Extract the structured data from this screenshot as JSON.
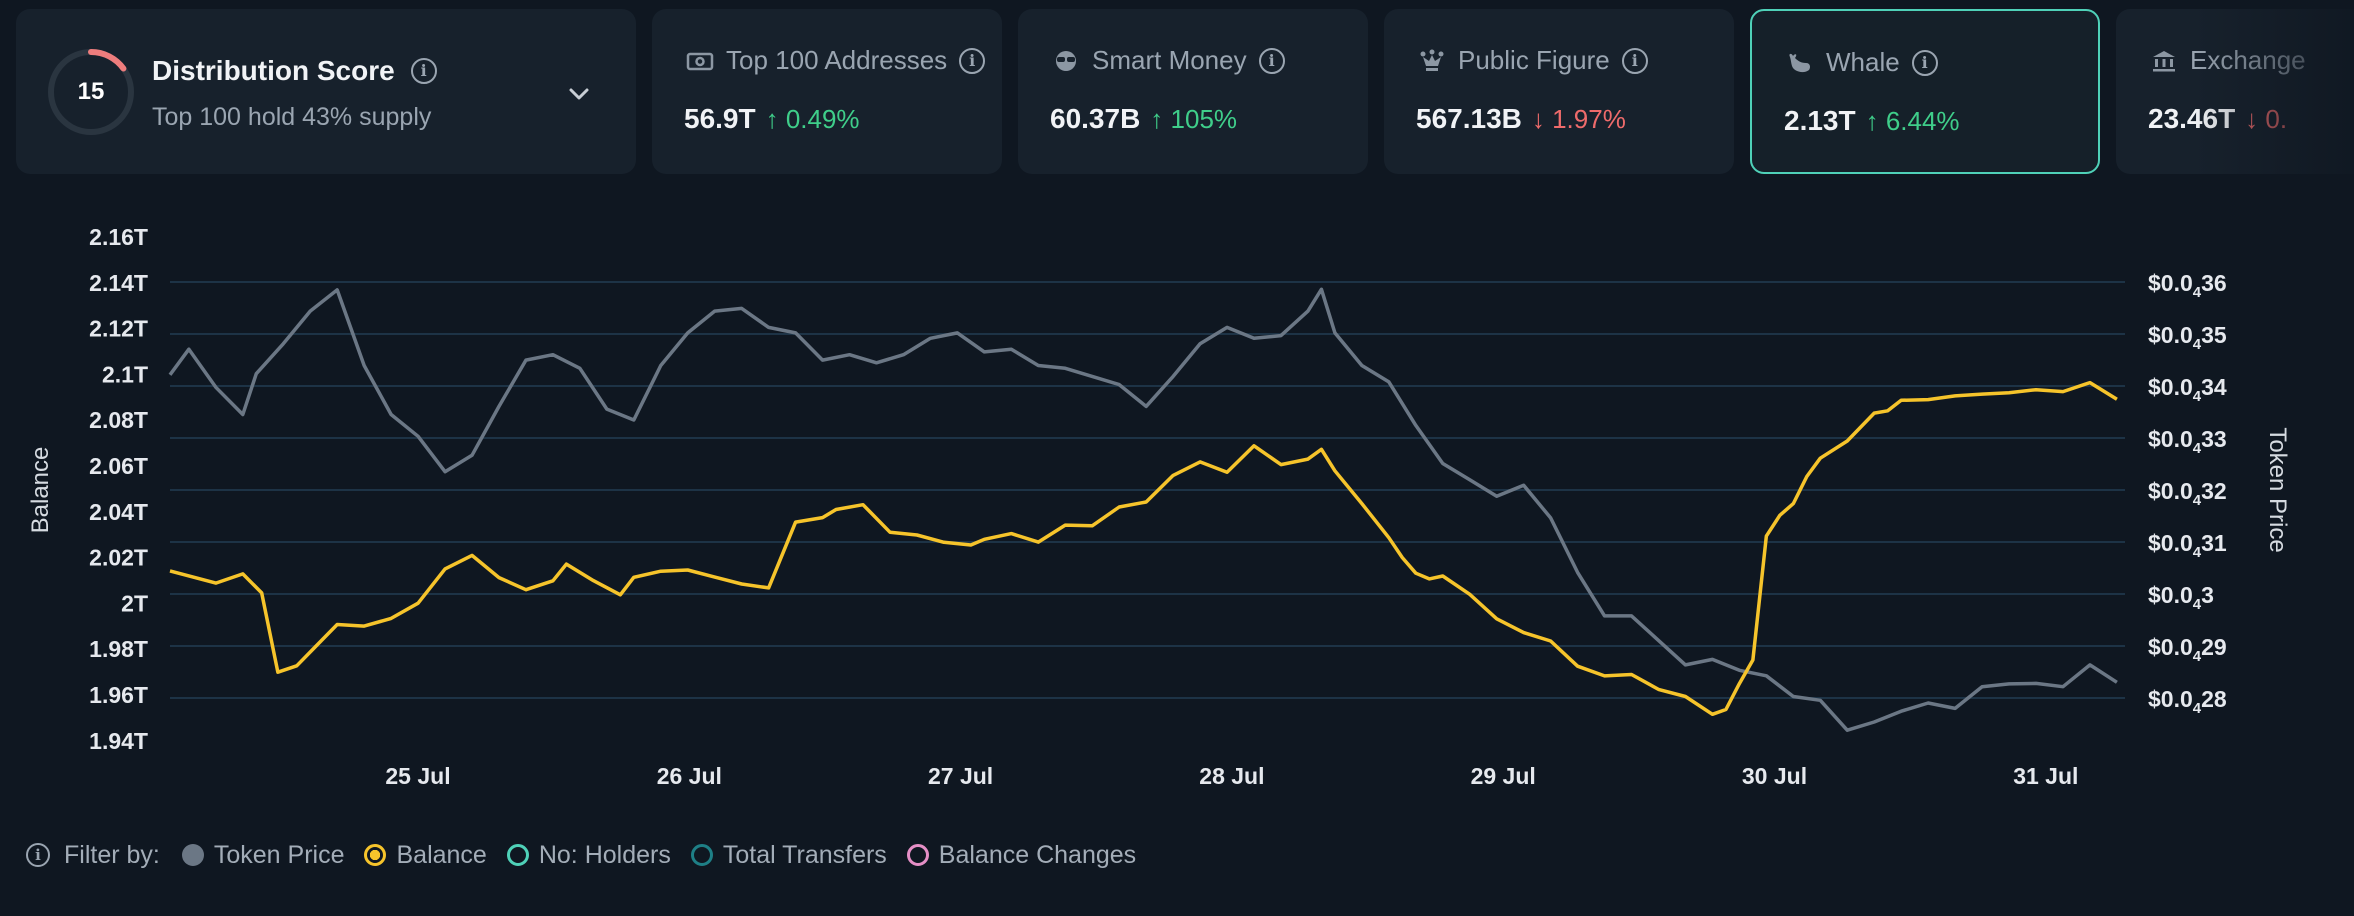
{
  "colors": {
    "token_price": "#6b7785",
    "balance": "#f6c42b",
    "holders": "#4fd1b8",
    "transfers": "#1e7f86",
    "balance_changes": "#e58fc6",
    "score_ring": "#ee7d7d",
    "accent": "#4fd1b8"
  },
  "distribution": {
    "score": "15",
    "score_fraction": 0.15,
    "title": "Distribution Score",
    "subtitle": "Top 100 hold 43% supply"
  },
  "cards": [
    {
      "label": "Top 100 Addresses",
      "value": "56.9T",
      "change": "↑ 0.49%",
      "direction": "up",
      "icon": "money-icon"
    },
    {
      "label": "Smart Money",
      "value": "60.37B",
      "change": "↑ 105%",
      "direction": "up",
      "icon": "sunglasses-icon"
    },
    {
      "label": "Public Figure",
      "value": "567.13B",
      "change": "↓ 1.97%",
      "direction": "down",
      "icon": "crown-icon"
    },
    {
      "label": "Whale",
      "value": "2.13T",
      "change": "↑ 6.44%",
      "direction": "up",
      "icon": "whale-icon",
      "selected": true
    },
    {
      "label": "Exchange",
      "value": "23.46T",
      "change": "↓ 0.",
      "direction": "down",
      "icon": "bank-icon"
    }
  ],
  "filters": {
    "label": "Filter by:",
    "items": [
      {
        "label": "Token Price",
        "style": "filled",
        "color": "#6b7785"
      },
      {
        "label": "Balance",
        "style": "ring-filled",
        "color": "#f6c42b"
      },
      {
        "label": "No: Holders",
        "style": "ring",
        "color": "#4fd1b8"
      },
      {
        "label": "Total Transfers",
        "style": "ring",
        "color": "#1e7f86"
      },
      {
        "label": "Balance Changes",
        "style": "ring",
        "color": "#e58fc6"
      }
    ]
  },
  "chart_data": {
    "type": "line",
    "ylabel": "Balance",
    "y2label": "Token Price",
    "y_ticks": [
      "2.16T",
      "2.14T",
      "2.12T",
      "2.1T",
      "2.08T",
      "2.06T",
      "2.04T",
      "2.02T",
      "2T",
      "1.98T",
      "1.96T",
      "1.94T"
    ],
    "y2_ticks": [
      {
        "pre": "$0.0",
        "sub": "4",
        "post": "36"
      },
      {
        "pre": "$0.0",
        "sub": "4",
        "post": "35"
      },
      {
        "pre": "$0.0",
        "sub": "4",
        "post": "34"
      },
      {
        "pre": "$0.0",
        "sub": "4",
        "post": "33"
      },
      {
        "pre": "$0.0",
        "sub": "4",
        "post": "32"
      },
      {
        "pre": "$0.0",
        "sub": "4",
        "post": "31"
      },
      {
        "pre": "$0.0",
        "sub": "4",
        "post": "3"
      },
      {
        "pre": "$0.0",
        "sub": "4",
        "post": "29"
      },
      {
        "pre": "$0.0",
        "sub": "4",
        "post": "28"
      }
    ],
    "x_ticks": [
      "25 Jul",
      "26 Jul",
      "27 Jul",
      "28 Jul",
      "29 Jul",
      "30 Jul",
      "31 Jul"
    ],
    "x_range": [
      24.28,
      31.53
    ],
    "ylim": [
      1.94,
      2.16
    ],
    "y2lim": [
      2.732e-05,
      3.658e-05
    ],
    "grid": true,
    "series": [
      {
        "name": "Balance",
        "color": "#f6c42b",
        "x": [
          24.28,
          24.45,
          24.55,
          24.62,
          24.68,
          24.75,
          24.82,
          24.9,
          25.0,
          25.1,
          25.2,
          25.3,
          25.4,
          25.5,
          25.6,
          25.7,
          25.75,
          25.85,
          25.95,
          26.0,
          26.1,
          26.2,
          26.3,
          26.4,
          26.5,
          26.6,
          26.7,
          26.75,
          26.85,
          26.95,
          27.05,
          27.15,
          27.25,
          27.3,
          27.4,
          27.5,
          27.6,
          27.7,
          27.8,
          27.9,
          28.0,
          28.1,
          28.2,
          28.3,
          28.4,
          28.5,
          28.55,
          28.6,
          28.7,
          28.8,
          28.85,
          28.9,
          28.95,
          29.0,
          29.1,
          29.2,
          29.3,
          29.4,
          29.5,
          29.6,
          29.7,
          29.8,
          29.9,
          30.0,
          30.05,
          30.1,
          30.15,
          30.2,
          30.25,
          30.3,
          30.35,
          30.4,
          30.5,
          30.6,
          30.65,
          30.7,
          30.8,
          30.9,
          31.0,
          31.1,
          31.2,
          31.3,
          31.4,
          31.5
        ],
        "y": [
          2.0138,
          2.0085,
          2.0125,
          2.0042,
          1.9696,
          1.9724,
          1.9808,
          1.9904,
          1.9897,
          1.9931,
          1.9997,
          2.0147,
          2.0206,
          2.0109,
          2.0056,
          2.0095,
          2.0168,
          2.0096,
          2.0034,
          2.011,
          2.0137,
          2.0142,
          2.0111,
          2.0081,
          2.0064,
          2.0351,
          2.0371,
          2.0406,
          2.0427,
          2.0307,
          2.0295,
          2.0263,
          2.0251,
          2.0276,
          2.0301,
          2.0264,
          2.0338,
          2.0335,
          2.0417,
          2.0439,
          2.0555,
          2.0614,
          2.0569,
          2.0684,
          2.0602,
          2.0626,
          2.0669,
          2.0575,
          2.0432,
          2.0283,
          2.0196,
          2.0128,
          2.0103,
          2.0116,
          2.0036,
          1.9929,
          1.9869,
          1.9832,
          1.9722,
          1.968,
          1.9686,
          1.9621,
          1.959,
          1.9512,
          1.9533,
          1.9646,
          1.9749,
          2.029,
          2.0381,
          2.0432,
          2.055,
          2.063,
          2.0705,
          2.0827,
          2.0837,
          2.0883,
          2.0886,
          2.0902,
          2.091,
          2.0916,
          2.0929,
          2.0921,
          2.096,
          2.0887
        ]
      },
      {
        "name": "Token Price",
        "color": "#6b7785",
        "x": [
          24.28,
          24.35,
          24.45,
          24.55,
          24.6,
          24.7,
          24.8,
          24.9,
          25.0,
          25.1,
          25.2,
          25.3,
          25.4,
          25.5,
          25.6,
          25.7,
          25.8,
          25.9,
          26.0,
          26.1,
          26.2,
          26.3,
          26.4,
          26.5,
          26.6,
          26.7,
          26.8,
          26.9,
          27.0,
          27.1,
          27.2,
          27.3,
          27.4,
          27.5,
          27.6,
          27.7,
          27.8,
          27.9,
          28.0,
          28.1,
          28.2,
          28.3,
          28.4,
          28.5,
          28.55,
          28.6,
          28.7,
          28.8,
          28.9,
          29.0,
          29.1,
          29.2,
          29.3,
          29.4,
          29.5,
          29.6,
          29.7,
          29.8,
          29.9,
          30.0,
          30.1,
          30.2,
          30.3,
          30.4,
          30.5,
          30.6,
          30.7,
          30.8,
          30.9,
          31.0,
          31.1,
          31.2,
          31.3,
          31.4,
          31.5
        ],
        "y": [
          3.403e-05,
          3.45e-05,
          3.38e-05,
          3.33e-05,
          3.405e-05,
          3.46e-05,
          3.52e-05,
          3.559e-05,
          3.42e-05,
          3.33e-05,
          3.29e-05,
          3.225e-05,
          3.255e-05,
          3.345e-05,
          3.43e-05,
          3.44e-05,
          3.415e-05,
          3.34e-05,
          3.32e-05,
          3.42e-05,
          3.48e-05,
          3.52e-05,
          3.525e-05,
          3.49e-05,
          3.48e-05,
          3.43e-05,
          3.44e-05,
          3.425e-05,
          3.44e-05,
          3.47e-05,
          3.48e-05,
          3.445e-05,
          3.45e-05,
          3.42e-05,
          3.415e-05,
          3.4e-05,
          3.385e-05,
          3.345e-05,
          3.4e-05,
          3.46e-05,
          3.49e-05,
          3.47e-05,
          3.475e-05,
          3.52e-05,
          3.56e-05,
          3.48e-05,
          3.42e-05,
          3.39e-05,
          3.31e-05,
          3.24e-05,
          3.21e-05,
          3.18e-05,
          3.2e-05,
          3.14e-05,
          3.04e-05,
          2.96e-05,
          2.96e-05,
          2.915e-05,
          2.87e-05,
          2.88e-05,
          2.86e-05,
          2.85e-05,
          2.812e-05,
          2.805e-05,
          2.75e-05,
          2.765e-05,
          2.785e-05,
          2.8e-05,
          2.79e-05,
          2.83e-05,
          2.835e-05,
          2.836e-05,
          2.83e-05,
          2.87e-05,
          2.838e-05
        ]
      }
    ]
  }
}
